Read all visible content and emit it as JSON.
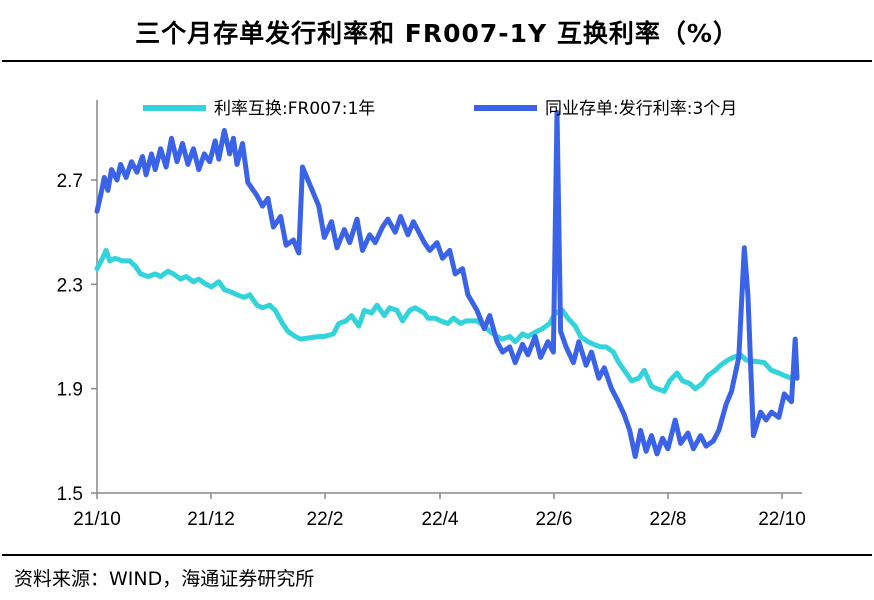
{
  "header": {
    "title": "三个月存单发行利率和 FR007-1Y 互换利率（%）"
  },
  "footer": {
    "source": "资料来源：WIND，海通证券研究所"
  },
  "colors": {
    "swap_series": "#33D3DB",
    "cd_series": "#3A63E8",
    "axis": "#888888",
    "rule": "#000000"
  },
  "chart_data": {
    "type": "line",
    "title": "三个月存单发行利率和 FR007-1Y 互换利率（%）",
    "xlabel": "",
    "ylabel": "",
    "ylim": [
      1.5,
      3.0
    ],
    "x_tick_labels": [
      "21/10",
      "21/12",
      "22/2",
      "22/4",
      "22/6",
      "22/8",
      "22/10"
    ],
    "y_tick_labels": [
      "1.5",
      "1.9",
      "2.3",
      "2.7"
    ],
    "y_ticks": [
      1.5,
      1.9,
      2.3,
      2.7
    ],
    "grid": false,
    "legend_position": "top",
    "x_start": "2021-10-08",
    "x_end": "2022-10-28",
    "series": [
      {
        "name": "利率互换:FR007:1年",
        "color_key": "swap_series",
        "points": [
          [
            "2021-10-08",
            2.36
          ],
          [
            "2021-10-11",
            2.4
          ],
          [
            "2021-10-13",
            2.43
          ],
          [
            "2021-10-15",
            2.39
          ],
          [
            "2021-10-18",
            2.4
          ],
          [
            "2021-10-22",
            2.39
          ],
          [
            "2021-10-26",
            2.39
          ],
          [
            "2021-10-29",
            2.37
          ],
          [
            "2021-11-01",
            2.34
          ],
          [
            "2021-11-05",
            2.33
          ],
          [
            "2021-11-09",
            2.34
          ],
          [
            "2021-11-12",
            2.33
          ],
          [
            "2021-11-16",
            2.35
          ],
          [
            "2021-11-19",
            2.34
          ],
          [
            "2021-11-23",
            2.32
          ],
          [
            "2021-11-26",
            2.33
          ],
          [
            "2021-11-30",
            2.31
          ],
          [
            "2021-12-03",
            2.32
          ],
          [
            "2021-12-07",
            2.3
          ],
          [
            "2021-12-10",
            2.29
          ],
          [
            "2021-12-14",
            2.31
          ],
          [
            "2021-12-17",
            2.28
          ],
          [
            "2021-12-21",
            2.27
          ],
          [
            "2021-12-24",
            2.26
          ],
          [
            "2021-12-28",
            2.25
          ],
          [
            "2021-12-31",
            2.26
          ],
          [
            "2022-01-04",
            2.22
          ],
          [
            "2022-01-07",
            2.21
          ],
          [
            "2022-01-11",
            2.22
          ],
          [
            "2022-01-14",
            2.2
          ],
          [
            "2022-01-18",
            2.15
          ],
          [
            "2022-01-21",
            2.12
          ],
          [
            "2022-01-25",
            2.1
          ],
          [
            "2022-01-28",
            2.09
          ],
          [
            "2022-02-07",
            2.1
          ],
          [
            "2022-02-10",
            2.1
          ],
          [
            "2022-02-15",
            2.11
          ],
          [
            "2022-02-18",
            2.15
          ],
          [
            "2022-02-22",
            2.16
          ],
          [
            "2022-02-25",
            2.18
          ],
          [
            "2022-03-01",
            2.14
          ],
          [
            "2022-03-04",
            2.2
          ],
          [
            "2022-03-08",
            2.19
          ],
          [
            "2022-03-11",
            2.22
          ],
          [
            "2022-03-15",
            2.18
          ],
          [
            "2022-03-18",
            2.21
          ],
          [
            "2022-03-22",
            2.2
          ],
          [
            "2022-03-25",
            2.16
          ],
          [
            "2022-03-29",
            2.2
          ],
          [
            "2022-04-01",
            2.21
          ],
          [
            "2022-04-06",
            2.19
          ],
          [
            "2022-04-08",
            2.17
          ],
          [
            "2022-04-12",
            2.17
          ],
          [
            "2022-04-15",
            2.16
          ],
          [
            "2022-04-19",
            2.15
          ],
          [
            "2022-04-22",
            2.17
          ],
          [
            "2022-04-26",
            2.15
          ],
          [
            "2022-04-29",
            2.16
          ],
          [
            "2022-05-05",
            2.16
          ],
          [
            "2022-05-09",
            2.14
          ],
          [
            "2022-05-12",
            2.12
          ],
          [
            "2022-05-16",
            2.1
          ],
          [
            "2022-05-19",
            2.09
          ],
          [
            "2022-05-23",
            2.1
          ],
          [
            "2022-05-26",
            2.08
          ],
          [
            "2022-05-30",
            2.11
          ],
          [
            "2022-06-02",
            2.1
          ],
          [
            "2022-06-07",
            2.12
          ],
          [
            "2022-06-10",
            2.13
          ],
          [
            "2022-06-14",
            2.15
          ],
          [
            "2022-06-17",
            2.19
          ],
          [
            "2022-06-21",
            2.2
          ],
          [
            "2022-06-24",
            2.17
          ],
          [
            "2022-06-28",
            2.14
          ],
          [
            "2022-07-01",
            2.1
          ],
          [
            "2022-07-05",
            2.08
          ],
          [
            "2022-07-08",
            2.07
          ],
          [
            "2022-07-12",
            2.06
          ],
          [
            "2022-07-15",
            2.06
          ],
          [
            "2022-07-19",
            2.04
          ],
          [
            "2022-07-22",
            2.0
          ],
          [
            "2022-07-26",
            1.96
          ],
          [
            "2022-07-29",
            1.93
          ],
          [
            "2022-08-02",
            1.94
          ],
          [
            "2022-08-05",
            1.97
          ],
          [
            "2022-08-09",
            1.91
          ],
          [
            "2022-08-12",
            1.9
          ],
          [
            "2022-08-16",
            1.89
          ],
          [
            "2022-08-19",
            1.93
          ],
          [
            "2022-08-23",
            1.96
          ],
          [
            "2022-08-26",
            1.93
          ],
          [
            "2022-08-30",
            1.92
          ],
          [
            "2022-09-02",
            1.9
          ],
          [
            "2022-09-06",
            1.92
          ],
          [
            "2022-09-09",
            1.95
          ],
          [
            "2022-09-13",
            1.97
          ],
          [
            "2022-09-16",
            1.99
          ],
          [
            "2022-09-20",
            2.01
          ],
          [
            "2022-09-23",
            2.02
          ],
          [
            "2022-09-27",
            2.03
          ],
          [
            "2022-09-30",
            2.01
          ],
          [
            "2022-10-10",
            2.0
          ],
          [
            "2022-10-14",
            1.97
          ],
          [
            "2022-10-18",
            1.96
          ],
          [
            "2022-10-21",
            1.95
          ],
          [
            "2022-10-25",
            1.94
          ],
          [
            "2022-10-28",
            1.95
          ]
        ]
      },
      {
        "name": "同业存单:发行利率:3个月",
        "color_key": "cd_series",
        "points": [
          [
            "2021-10-08",
            2.58
          ],
          [
            "2021-10-10",
            2.64
          ],
          [
            "2021-10-12",
            2.71
          ],
          [
            "2021-10-14",
            2.66
          ],
          [
            "2021-10-16",
            2.74
          ],
          [
            "2021-10-19",
            2.7
          ],
          [
            "2021-10-21",
            2.76
          ],
          [
            "2021-10-24",
            2.71
          ],
          [
            "2021-10-27",
            2.77
          ],
          [
            "2021-10-30",
            2.73
          ],
          [
            "2021-11-02",
            2.79
          ],
          [
            "2021-11-04",
            2.72
          ],
          [
            "2021-11-07",
            2.8
          ],
          [
            "2021-11-09",
            2.74
          ],
          [
            "2021-11-12",
            2.82
          ],
          [
            "2021-11-15",
            2.75
          ],
          [
            "2021-11-18",
            2.86
          ],
          [
            "2021-11-21",
            2.77
          ],
          [
            "2021-11-24",
            2.84
          ],
          [
            "2021-11-27",
            2.76
          ],
          [
            "2021-11-30",
            2.82
          ],
          [
            "2021-12-03",
            2.74
          ],
          [
            "2021-12-06",
            2.8
          ],
          [
            "2021-12-09",
            2.77
          ],
          [
            "2021-12-12",
            2.85
          ],
          [
            "2021-12-14",
            2.78
          ],
          [
            "2021-12-17",
            2.89
          ],
          [
            "2021-12-20",
            2.8
          ],
          [
            "2021-12-22",
            2.86
          ],
          [
            "2021-12-24",
            2.76
          ],
          [
            "2021-12-27",
            2.84
          ],
          [
            "2021-12-30",
            2.69
          ],
          [
            "2022-01-04",
            2.64
          ],
          [
            "2022-01-07",
            2.6
          ],
          [
            "2022-01-10",
            2.63
          ],
          [
            "2022-01-13",
            2.52
          ],
          [
            "2022-01-17",
            2.56
          ],
          [
            "2022-01-20",
            2.45
          ],
          [
            "2022-01-24",
            2.47
          ],
          [
            "2022-01-27",
            2.42
          ],
          [
            "2022-01-29",
            2.75
          ],
          [
            "2022-02-07",
            2.6
          ],
          [
            "2022-02-10",
            2.48
          ],
          [
            "2022-02-14",
            2.54
          ],
          [
            "2022-02-17",
            2.44
          ],
          [
            "2022-02-21",
            2.51
          ],
          [
            "2022-02-24",
            2.46
          ],
          [
            "2022-02-28",
            2.55
          ],
          [
            "2022-03-03",
            2.43
          ],
          [
            "2022-03-07",
            2.49
          ],
          [
            "2022-03-10",
            2.46
          ],
          [
            "2022-03-14",
            2.52
          ],
          [
            "2022-03-17",
            2.55
          ],
          [
            "2022-03-21",
            2.5
          ],
          [
            "2022-03-24",
            2.56
          ],
          [
            "2022-03-28",
            2.49
          ],
          [
            "2022-03-31",
            2.54
          ],
          [
            "2022-04-06",
            2.46
          ],
          [
            "2022-04-09",
            2.43
          ],
          [
            "2022-04-13",
            2.46
          ],
          [
            "2022-04-16",
            2.4
          ],
          [
            "2022-04-20",
            2.43
          ],
          [
            "2022-04-23",
            2.34
          ],
          [
            "2022-04-27",
            2.36
          ],
          [
            "2022-04-30",
            2.26
          ],
          [
            "2022-05-05",
            2.2
          ],
          [
            "2022-05-09",
            2.13
          ],
          [
            "2022-05-12",
            2.18
          ],
          [
            "2022-05-16",
            2.08
          ],
          [
            "2022-05-19",
            2.04
          ],
          [
            "2022-05-23",
            2.06
          ],
          [
            "2022-05-26",
            2.0
          ],
          [
            "2022-05-30",
            2.07
          ],
          [
            "2022-06-02",
            2.03
          ],
          [
            "2022-06-06",
            2.1
          ],
          [
            "2022-06-09",
            2.02
          ],
          [
            "2022-06-13",
            2.08
          ],
          [
            "2022-06-16",
            2.04
          ],
          [
            "2022-06-18",
            2.96
          ],
          [
            "2022-06-20",
            2.12
          ],
          [
            "2022-06-23",
            2.06
          ],
          [
            "2022-06-27",
            2.0
          ],
          [
            "2022-06-30",
            2.08
          ],
          [
            "2022-07-04",
            1.99
          ],
          [
            "2022-07-07",
            2.04
          ],
          [
            "2022-07-11",
            1.94
          ],
          [
            "2022-07-14",
            1.98
          ],
          [
            "2022-07-18",
            1.9
          ],
          [
            "2022-07-21",
            1.86
          ],
          [
            "2022-07-25",
            1.8
          ],
          [
            "2022-07-28",
            1.74
          ],
          [
            "2022-07-31",
            1.64
          ],
          [
            "2022-08-03",
            1.74
          ],
          [
            "2022-08-06",
            1.66
          ],
          [
            "2022-08-09",
            1.72
          ],
          [
            "2022-08-12",
            1.65
          ],
          [
            "2022-08-15",
            1.71
          ],
          [
            "2022-08-18",
            1.67
          ],
          [
            "2022-08-22",
            1.78
          ],
          [
            "2022-08-25",
            1.69
          ],
          [
            "2022-08-29",
            1.73
          ],
          [
            "2022-09-01",
            1.67
          ],
          [
            "2022-09-05",
            1.72
          ],
          [
            "2022-09-08",
            1.68
          ],
          [
            "2022-09-12",
            1.7
          ],
          [
            "2022-09-15",
            1.74
          ],
          [
            "2022-09-19",
            1.84
          ],
          [
            "2022-09-22",
            1.89
          ],
          [
            "2022-09-26",
            2.02
          ],
          [
            "2022-09-29",
            2.44
          ],
          [
            "2022-10-01",
            2.26
          ],
          [
            "2022-10-04",
            1.72
          ],
          [
            "2022-10-08",
            1.81
          ],
          [
            "2022-10-11",
            1.78
          ],
          [
            "2022-10-14",
            1.81
          ],
          [
            "2022-10-18",
            1.79
          ],
          [
            "2022-10-21",
            1.88
          ],
          [
            "2022-10-25",
            1.85
          ],
          [
            "2022-10-27",
            2.09
          ],
          [
            "2022-10-28",
            1.94
          ]
        ]
      }
    ]
  }
}
